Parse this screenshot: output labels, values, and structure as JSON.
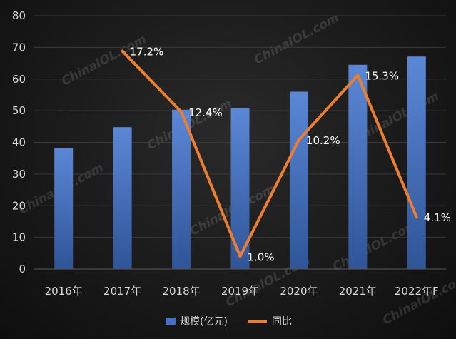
{
  "chart_data": {
    "type": "bar",
    "title": "",
    "categories": [
      "2016年",
      "2017年",
      "2018年",
      "2019年",
      "2020年",
      "2021年",
      "2022年F"
    ],
    "series": [
      {
        "name": "规模(亿元)",
        "type": "bar",
        "axis": "left",
        "color": "#4472c4",
        "values": [
          38.3,
          44.8,
          50.3,
          50.8,
          56.0,
          64.5,
          67.1
        ]
      },
      {
        "name": "同比",
        "type": "line",
        "axis": "right",
        "color": "#ed7d31",
        "values": [
          null,
          17.2,
          12.4,
          1.0,
          10.2,
          15.3,
          4.1
        ],
        "data_labels": [
          "",
          "17.2%",
          "12.4%",
          "1.0%",
          "10.2%",
          "15.3%",
          "4.1%"
        ]
      }
    ],
    "y_ticks": [
      "0",
      "10",
      "20",
      "30",
      "40",
      "50",
      "60",
      "70",
      "80"
    ],
    "ylim": [
      0,
      80
    ],
    "y2lim": [
      0,
      20
    ],
    "grid": "horizontal",
    "legend_position": "bottom",
    "watermark": "ChinaIOL.com"
  }
}
